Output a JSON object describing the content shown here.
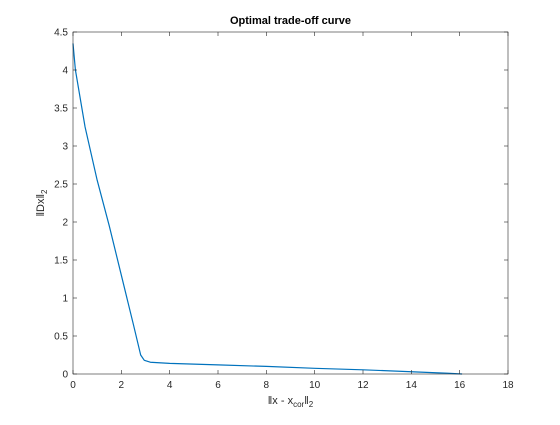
{
  "chart_data": {
    "type": "line",
    "title": "Optimal trade-off curve",
    "xlabel": {
      "prefix": "‖x - x",
      "subscript": "cor",
      "suffix": "‖",
      "trailing_subscript": "2"
    },
    "ylabel": {
      "prefix": "‖Dx‖",
      "subscript": "2"
    },
    "xlim": [
      0,
      18
    ],
    "ylim": [
      0,
      4.5
    ],
    "xticks": [
      0,
      2,
      4,
      6,
      8,
      10,
      12,
      14,
      16,
      18
    ],
    "yticks": [
      0,
      0.5,
      1,
      1.5,
      2,
      2.5,
      3,
      3.5,
      4,
      4.5
    ],
    "xtick_labels": [
      "0",
      "2",
      "4",
      "6",
      "8",
      "10",
      "12",
      "14",
      "16",
      "18"
    ],
    "ytick_labels": [
      "0",
      "0.5",
      "1",
      "1.5",
      "2",
      "2.5",
      "3",
      "3.5",
      "4",
      "4.5"
    ],
    "grid": false,
    "series": [
      {
        "color": "#0072BD",
        "x": [
          0.0,
          0.1,
          0.5,
          1.0,
          1.5,
          2.0,
          2.5,
          2.8,
          2.95,
          3.2,
          4.0,
          6.0,
          8.0,
          10.0,
          12.0,
          14.0,
          15.5,
          16.1
        ],
        "y": [
          4.35,
          4.0,
          3.25,
          2.55,
          1.95,
          1.3,
          0.65,
          0.25,
          0.18,
          0.155,
          0.14,
          0.12,
          0.1,
          0.075,
          0.055,
          0.03,
          0.01,
          0.0
        ]
      }
    ]
  }
}
